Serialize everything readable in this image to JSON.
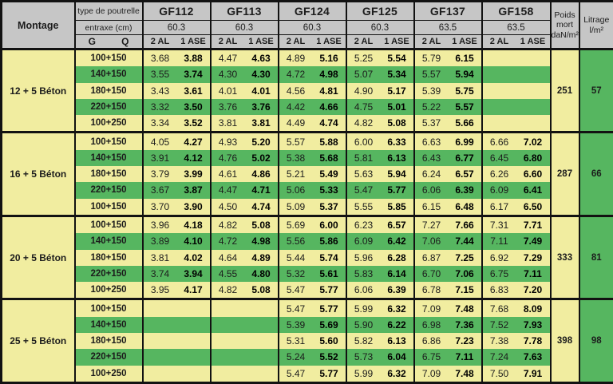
{
  "header": {
    "montage_label": "Montage",
    "type_label": "type de poutrelle",
    "entraxe_label": "entraxe (cm)",
    "g_label": "G",
    "q_label": "Q",
    "al_label": "2 AL",
    "ase_label": "1 ASE",
    "poids_label": "Poids mort daN/m²",
    "litrage_label": "Litrage l/m²",
    "beams": [
      {
        "name": "GF112",
        "entraxe": "60.3"
      },
      {
        "name": "GF113",
        "entraxe": "60.3"
      },
      {
        "name": "GF124",
        "entraxe": "60.3"
      },
      {
        "name": "GF125",
        "entraxe": "60.3"
      },
      {
        "name": "GF137",
        "entraxe": "63.5"
      },
      {
        "name": "GF158",
        "entraxe": "63.5"
      }
    ]
  },
  "colors": {
    "row_yellow": "#F1EDA0",
    "row_green": "#56B660",
    "header_gray": "#C6C6C6",
    "border_black": "#121212"
  },
  "groups": [
    {
      "montage": "12 + 5 Béton",
      "poids": "251",
      "litrage": "57",
      "rows": [
        {
          "label": "100+150",
          "values": [
            "3.68",
            "3.88",
            "4.47",
            "4.63",
            "4.89",
            "5.16",
            "5.25",
            "5.54",
            "5.79",
            "6.15",
            "",
            ""
          ]
        },
        {
          "label": "140+150",
          "values": [
            "3.55",
            "3.74",
            "4.30",
            "4.30",
            "4.72",
            "4.98",
            "5.07",
            "5.34",
            "5.57",
            "5.94",
            "",
            ""
          ]
        },
        {
          "label": "180+150",
          "values": [
            "3.43",
            "3.61",
            "4.01",
            "4.01",
            "4.56",
            "4.81",
            "4.90",
            "5.17",
            "5.39",
            "5.75",
            "",
            ""
          ]
        },
        {
          "label": "220+150",
          "values": [
            "3.32",
            "3.50",
            "3.76",
            "3.76",
            "4.42",
            "4.66",
            "4.75",
            "5.01",
            "5.22",
            "5.57",
            "",
            ""
          ]
        },
        {
          "label": "100+250",
          "values": [
            "3.34",
            "3.52",
            "3.81",
            "3.81",
            "4.49",
            "4.74",
            "4.82",
            "5.08",
            "5.37",
            "5.66",
            "",
            ""
          ]
        }
      ]
    },
    {
      "montage": "16 + 5 Béton",
      "poids": "287",
      "litrage": "66",
      "rows": [
        {
          "label": "100+150",
          "values": [
            "4.05",
            "4.27",
            "4.93",
            "5.20",
            "5.57",
            "5.88",
            "6.00",
            "6.33",
            "6.63",
            "6.99",
            "6.66",
            "7.02"
          ]
        },
        {
          "label": "140+150",
          "values": [
            "3.91",
            "4.12",
            "4.76",
            "5.02",
            "5.38",
            "5.68",
            "5.81",
            "6.13",
            "6.43",
            "6.77",
            "6.45",
            "6.80"
          ]
        },
        {
          "label": "180+150",
          "values": [
            "3.79",
            "3.99",
            "4.61",
            "4.86",
            "5.21",
            "5.49",
            "5.63",
            "5.94",
            "6.24",
            "6.57",
            "6.26",
            "6.60"
          ]
        },
        {
          "label": "220+150",
          "values": [
            "3.67",
            "3.87",
            "4.47",
            "4.71",
            "5.06",
            "5.33",
            "5.47",
            "5.77",
            "6.06",
            "6.39",
            "6.09",
            "6.41"
          ]
        },
        {
          "label": "100+150",
          "values": [
            "3.70",
            "3.90",
            "4.50",
            "4.74",
            "5.09",
            "5.37",
            "5.55",
            "5.85",
            "6.15",
            "6.48",
            "6.17",
            "6.50"
          ]
        }
      ]
    },
    {
      "montage": "20 + 5 Béton",
      "poids": "333",
      "litrage": "81",
      "rows": [
        {
          "label": "100+150",
          "values": [
            "3.96",
            "4.18",
            "4.82",
            "5.08",
            "5.69",
            "6.00",
            "6.23",
            "6.57",
            "7.27",
            "7.66",
            "7.31",
            "7.71"
          ]
        },
        {
          "label": "140+150",
          "values": [
            "3.89",
            "4.10",
            "4.72",
            "4.98",
            "5.56",
            "5.86",
            "6.09",
            "6.42",
            "7.06",
            "7.44",
            "7.11",
            "7.49"
          ]
        },
        {
          "label": "180+150",
          "values": [
            "3.81",
            "4.02",
            "4.64",
            "4.89",
            "5.44",
            "5.74",
            "5.96",
            "6.28",
            "6.87",
            "7.25",
            "6.92",
            "7.29"
          ]
        },
        {
          "label": "220+150",
          "values": [
            "3.74",
            "3.94",
            "4.55",
            "4.80",
            "5.32",
            "5.61",
            "5.83",
            "6.14",
            "6.70",
            "7.06",
            "6.75",
            "7.11"
          ]
        },
        {
          "label": "100+250",
          "values": [
            "3.95",
            "4.17",
            "4.82",
            "5.08",
            "5.47",
            "5.77",
            "6.06",
            "6.39",
            "6.78",
            "7.15",
            "6.83",
            "7.20"
          ]
        }
      ]
    },
    {
      "montage": "25 + 5 Béton",
      "poids": "398",
      "litrage": "98",
      "rows": [
        {
          "label": "100+150",
          "values": [
            "",
            "",
            "",
            "",
            "5.47",
            "5.77",
            "5.99",
            "6.32",
            "7.09",
            "7.48",
            "7.68",
            "8.09"
          ]
        },
        {
          "label": "140+150",
          "values": [
            "",
            "",
            "",
            "",
            "5.39",
            "5.69",
            "5.90",
            "6.22",
            "6.98",
            "7.36",
            "7.52",
            "7.93"
          ]
        },
        {
          "label": "180+150",
          "values": [
            "",
            "",
            "",
            "",
            "5.31",
            "5.60",
            "5.82",
            "6.13",
            "6.86",
            "7.23",
            "7.38",
            "7.78"
          ]
        },
        {
          "label": "220+150",
          "values": [
            "",
            "",
            "",
            "",
            "5.24",
            "5.52",
            "5.73",
            "6.04",
            "6.75",
            "7.11",
            "7.24",
            "7.63"
          ]
        },
        {
          "label": "100+250",
          "values": [
            "",
            "",
            "",
            "",
            "5.47",
            "5.77",
            "5.99",
            "6.32",
            "7.09",
            "7.48",
            "7.50",
            "7.91"
          ]
        }
      ]
    }
  ]
}
